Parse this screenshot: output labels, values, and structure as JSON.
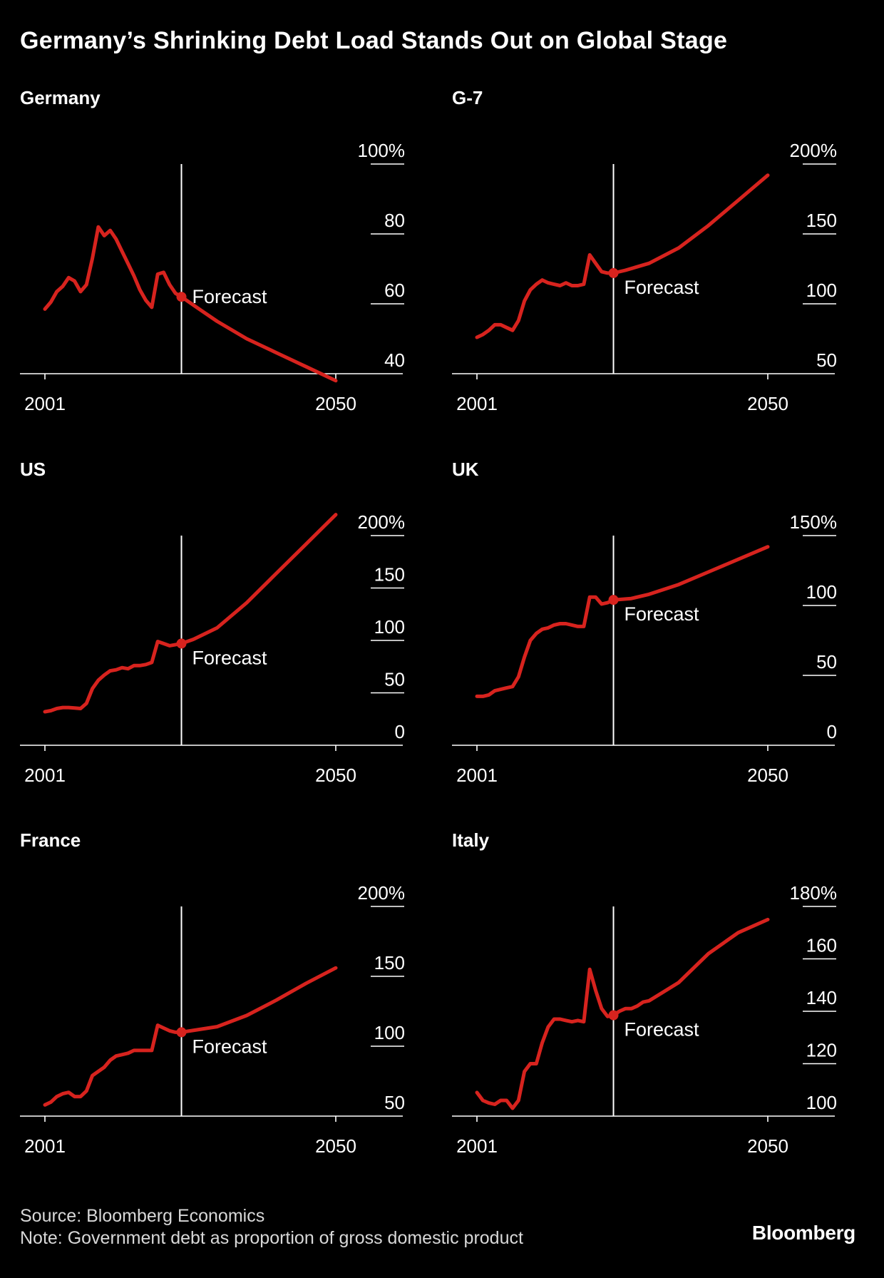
{
  "title": "Germany’s Shrinking Debt Load Stands Out on Global Stage",
  "source": "Source: Bloomberg Economics",
  "note": "Note: Government debt as proportion of gross domestic product",
  "brand": "Bloomberg",
  "colors": {
    "line": "#d7231e",
    "axis": "#ffffff",
    "text": "#ffffff",
    "background": "#000000"
  },
  "chart_data": [
    {
      "type": "line",
      "title": "Germany",
      "xlabel": "",
      "ylabel": "",
      "x_ticks": [
        "2001",
        "2050"
      ],
      "xlim": [
        2001,
        2050
      ],
      "forecast_year": 2024,
      "forecast_label": "Forecast",
      "ylim": [
        40,
        100
      ],
      "y_ticks": [
        40,
        60,
        80,
        100
      ],
      "y_tick_labels": [
        "40",
        "60",
        "80",
        "100%"
      ],
      "series": [
        {
          "name": "Germany",
          "values": [
            [
              2001,
              58.5
            ],
            [
              2002,
              60.5
            ],
            [
              2003,
              63.5
            ],
            [
              2004,
              65.0
            ],
            [
              2005,
              67.5
            ],
            [
              2006,
              66.5
            ],
            [
              2007,
              63.5
            ],
            [
              2008,
              65.5
            ],
            [
              2009,
              73.0
            ],
            [
              2010,
              82.0
            ],
            [
              2011,
              79.5
            ],
            [
              2012,
              81.0
            ],
            [
              2013,
              78.5
            ],
            [
              2014,
              75.0
            ],
            [
              2015,
              71.5
            ],
            [
              2016,
              68.0
            ],
            [
              2017,
              64.0
            ],
            [
              2018,
              61.0
            ],
            [
              2019,
              59.0
            ],
            [
              2020,
              68.5
            ],
            [
              2021,
              69.0
            ],
            [
              2022,
              65.5
            ],
            [
              2023,
              63.0
            ],
            [
              2024,
              62.0
            ],
            [
              2027,
              58.5
            ],
            [
              2030,
              55.0
            ],
            [
              2035,
              50.0
            ],
            [
              2040,
              46.0
            ],
            [
              2045,
              42.0
            ],
            [
              2050,
              38.0
            ]
          ]
        }
      ]
    },
    {
      "type": "line",
      "title": "G-7",
      "xlabel": "",
      "ylabel": "",
      "x_ticks": [
        "2001",
        "2050"
      ],
      "xlim": [
        2001,
        2050
      ],
      "forecast_year": 2024,
      "forecast_label": "Forecast",
      "ylim": [
        50,
        200
      ],
      "y_ticks": [
        50,
        100,
        150,
        200
      ],
      "y_tick_labels": [
        "50",
        "100",
        "150",
        "200%"
      ],
      "series": [
        {
          "name": "G-7",
          "values": [
            [
              2001,
              76
            ],
            [
              2002,
              78
            ],
            [
              2003,
              81
            ],
            [
              2004,
              85
            ],
            [
              2005,
              85
            ],
            [
              2006,
              83
            ],
            [
              2007,
              81
            ],
            [
              2008,
              88
            ],
            [
              2009,
              102
            ],
            [
              2010,
              110
            ],
            [
              2011,
              114
            ],
            [
              2012,
              117
            ],
            [
              2013,
              115
            ],
            [
              2014,
              114
            ],
            [
              2015,
              113
            ],
            [
              2016,
              115
            ],
            [
              2017,
              113
            ],
            [
              2018,
              113
            ],
            [
              2019,
              114
            ],
            [
              2020,
              135
            ],
            [
              2021,
              129
            ],
            [
              2022,
              123
            ],
            [
              2023,
              122
            ],
            [
              2024,
              122
            ],
            [
              2026,
              124
            ],
            [
              2030,
              129
            ],
            [
              2035,
              140
            ],
            [
              2040,
              156
            ],
            [
              2045,
              174
            ],
            [
              2050,
              192
            ]
          ]
        }
      ]
    },
    {
      "type": "line",
      "title": "US",
      "xlabel": "",
      "ylabel": "",
      "x_ticks": [
        "2001",
        "2050"
      ],
      "xlim": [
        2001,
        2050
      ],
      "forecast_year": 2024,
      "forecast_label": "Forecast",
      "ylim": [
        0,
        200
      ],
      "y_ticks": [
        0,
        50,
        100,
        150,
        200
      ],
      "y_tick_labels": [
        "0",
        "50",
        "100",
        "150",
        "200%"
      ],
      "series": [
        {
          "name": "US",
          "values": [
            [
              2001,
              32
            ],
            [
              2002,
              33
            ],
            [
              2003,
              35
            ],
            [
              2004,
              36
            ],
            [
              2005,
              36
            ],
            [
              2006,
              35.5
            ],
            [
              2007,
              35
            ],
            [
              2008,
              40
            ],
            [
              2009,
              54
            ],
            [
              2010,
              62
            ],
            [
              2011,
              67
            ],
            [
              2012,
              71
            ],
            [
              2013,
              72
            ],
            [
              2014,
              74
            ],
            [
              2015,
              73
            ],
            [
              2016,
              76
            ],
            [
              2017,
              76
            ],
            [
              2018,
              77
            ],
            [
              2019,
              79
            ],
            [
              2020,
              99
            ],
            [
              2021,
              97
            ],
            [
              2022,
              95
            ],
            [
              2023,
              96
            ],
            [
              2024,
              97
            ],
            [
              2026,
              101
            ],
            [
              2030,
              112
            ],
            [
              2035,
              136
            ],
            [
              2040,
              164
            ],
            [
              2045,
              192
            ],
            [
              2050,
              220
            ]
          ]
        }
      ]
    },
    {
      "type": "line",
      "title": "UK",
      "xlabel": "",
      "ylabel": "",
      "x_ticks": [
        "2001",
        "2050"
      ],
      "xlim": [
        2001,
        2050
      ],
      "forecast_year": 2024,
      "forecast_label": "Forecast",
      "ylim": [
        0,
        150
      ],
      "y_ticks": [
        0,
        50,
        100,
        150
      ],
      "y_tick_labels": [
        "0",
        "50",
        "100",
        "150%"
      ],
      "series": [
        {
          "name": "UK",
          "values": [
            [
              2001,
              35
            ],
            [
              2002,
              35
            ],
            [
              2003,
              36
            ],
            [
              2004,
              39
            ],
            [
              2005,
              40
            ],
            [
              2006,
              41
            ],
            [
              2007,
              42
            ],
            [
              2008,
              49
            ],
            [
              2009,
              63
            ],
            [
              2010,
              75
            ],
            [
              2011,
              80
            ],
            [
              2012,
              83
            ],
            [
              2013,
              84
            ],
            [
              2014,
              86
            ],
            [
              2015,
              87
            ],
            [
              2016,
              87
            ],
            [
              2017,
              86
            ],
            [
              2018,
              85
            ],
            [
              2019,
              85
            ],
            [
              2020,
              106
            ],
            [
              2021,
              106
            ],
            [
              2022,
              101
            ],
            [
              2023,
              102
            ],
            [
              2024,
              104
            ],
            [
              2027,
              105
            ],
            [
              2030,
              108
            ],
            [
              2035,
              115
            ],
            [
              2040,
              124
            ],
            [
              2045,
              133
            ],
            [
              2050,
              142
            ]
          ]
        }
      ]
    },
    {
      "type": "line",
      "title": "France",
      "xlabel": "",
      "ylabel": "",
      "x_ticks": [
        "2001",
        "2050"
      ],
      "xlim": [
        2001,
        2050
      ],
      "forecast_year": 2024,
      "forecast_label": "Forecast",
      "ylim": [
        50,
        200
      ],
      "y_ticks": [
        50,
        100,
        150,
        200
      ],
      "y_tick_labels": [
        "50",
        "100",
        "150",
        "200%"
      ],
      "series": [
        {
          "name": "France",
          "values": [
            [
              2001,
              58
            ],
            [
              2002,
              60
            ],
            [
              2003,
              64
            ],
            [
              2004,
              66
            ],
            [
              2005,
              67
            ],
            [
              2006,
              64
            ],
            [
              2007,
              64
            ],
            [
              2008,
              68
            ],
            [
              2009,
              79
            ],
            [
              2010,
              82
            ],
            [
              2011,
              85
            ],
            [
              2012,
              90
            ],
            [
              2013,
              93
            ],
            [
              2014,
              94
            ],
            [
              2015,
              95
            ],
            [
              2016,
              97
            ],
            [
              2017,
              97
            ],
            [
              2018,
              97
            ],
            [
              2019,
              97
            ],
            [
              2020,
              115
            ],
            [
              2021,
              113
            ],
            [
              2022,
              111
            ],
            [
              2023,
              110
            ],
            [
              2024,
              110
            ],
            [
              2027,
              112
            ],
            [
              2030,
              114
            ],
            [
              2035,
              122
            ],
            [
              2040,
              133
            ],
            [
              2045,
              145
            ],
            [
              2050,
              156
            ]
          ]
        }
      ]
    },
    {
      "type": "line",
      "title": "Italy",
      "xlabel": "",
      "ylabel": "",
      "x_ticks": [
        "2001",
        "2050"
      ],
      "xlim": [
        2001,
        2050
      ],
      "forecast_year": 2024,
      "forecast_label": "Forecast",
      "ylim": [
        100,
        180
      ],
      "y_ticks": [
        100,
        120,
        140,
        160,
        180
      ],
      "y_tick_labels": [
        "100",
        "120",
        "140",
        "160",
        "180%"
      ],
      "series": [
        {
          "name": "Italy",
          "values": [
            [
              2001,
              109
            ],
            [
              2002,
              106
            ],
            [
              2003,
              105
            ],
            [
              2004,
              104.5
            ],
            [
              2005,
              106
            ],
            [
              2006,
              106
            ],
            [
              2007,
              103
            ],
            [
              2008,
              106
            ],
            [
              2009,
              117
            ],
            [
              2010,
              120
            ],
            [
              2011,
              120
            ],
            [
              2012,
              128
            ],
            [
              2013,
              134
            ],
            [
              2014,
              137
            ],
            [
              2015,
              137
            ],
            [
              2016,
              136.5
            ],
            [
              2017,
              136
            ],
            [
              2018,
              136.5
            ],
            [
              2019,
              136
            ],
            [
              2020,
              156
            ],
            [
              2021,
              148
            ],
            [
              2022,
              141
            ],
            [
              2023,
              138
            ],
            [
              2024,
              138.5
            ],
            [
              2025,
              140
            ],
            [
              2026,
              141
            ],
            [
              2027,
              141
            ],
            [
              2028,
              142
            ],
            [
              2029,
              143.5
            ],
            [
              2030,
              144
            ],
            [
              2035,
              151
            ],
            [
              2040,
              162
            ],
            [
              2045,
              170
            ],
            [
              2050,
              175
            ]
          ]
        }
      ]
    }
  ]
}
